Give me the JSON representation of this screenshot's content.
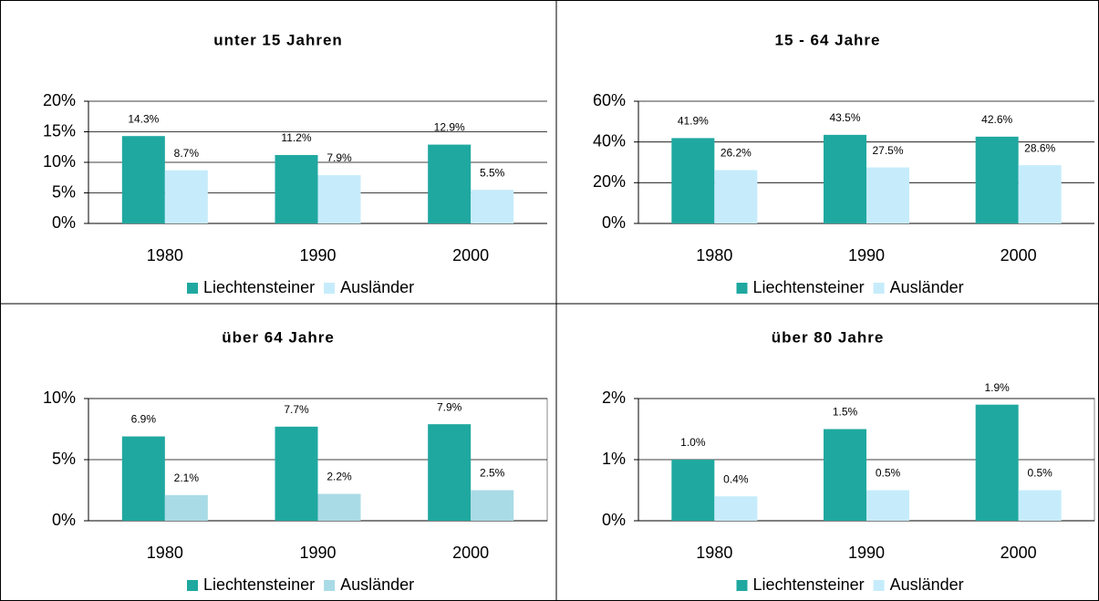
{
  "chart_data": [
    {
      "type": "bar",
      "title": "unter 15 Jahren",
      "categories": [
        "1980",
        "1990",
        "2000"
      ],
      "series": [
        {
          "name": "Liechtensteiner",
          "color": "#1fa8a0",
          "values": [
            14.3,
            11.2,
            12.9
          ],
          "value_labels": [
            "14.3%",
            "11.2%",
            "12.9%"
          ]
        },
        {
          "name": "Ausländer",
          "color": "#c6ecfb",
          "values": [
            8.7,
            7.9,
            5.5
          ],
          "value_labels": [
            "8.7%",
            "7.9%",
            "5.5%"
          ]
        }
      ],
      "ylim": [
        0,
        20
      ],
      "yticks": [
        {
          "value": 0,
          "label": "0%"
        },
        {
          "value": 5,
          "label": "5%"
        },
        {
          "value": 10,
          "label": "10%"
        },
        {
          "value": 15,
          "label": "15%"
        },
        {
          "value": 20,
          "label": "20%"
        }
      ],
      "grid": true
    },
    {
      "type": "bar",
      "title": "15 - 64 Jahre",
      "categories": [
        "1980",
        "1990",
        "2000"
      ],
      "series": [
        {
          "name": "Liechtensteiner",
          "color": "#1fa8a0",
          "values": [
            41.9,
            43.5,
            42.6
          ],
          "value_labels": [
            "41.9%",
            "43.5%",
            "42.6%"
          ]
        },
        {
          "name": "Ausländer",
          "color": "#c6ecfb",
          "values": [
            26.2,
            27.5,
            28.6
          ],
          "value_labels": [
            "26.2%",
            "27.5%",
            "28.6%"
          ]
        }
      ],
      "ylim": [
        0,
        60
      ],
      "yticks": [
        {
          "value": 0,
          "label": "0%"
        },
        {
          "value": 20,
          "label": "20%"
        },
        {
          "value": 40,
          "label": "40%"
        },
        {
          "value": 60,
          "label": "60%"
        }
      ],
      "grid": true
    },
    {
      "type": "bar",
      "title": "über 64 Jahre",
      "categories": [
        "1980",
        "1990",
        "2000"
      ],
      "series": [
        {
          "name": "Liechtensteiner",
          "color": "#1fa8a0",
          "values": [
            6.9,
            7.7,
            7.9
          ],
          "value_labels": [
            "6.9%",
            "7.7%",
            "7.9%"
          ]
        },
        {
          "name": "Ausländer",
          "color": "#a9dbe6",
          "values": [
            2.1,
            2.2,
            2.5
          ],
          "value_labels": [
            "2.1%",
            "2.2%",
            "2.5%"
          ]
        }
      ],
      "ylim": [
        0,
        10
      ],
      "yticks": [
        {
          "value": 0,
          "label": "0%"
        },
        {
          "value": 5,
          "label": "5%"
        },
        {
          "value": 10,
          "label": "10%"
        }
      ],
      "grid": true
    },
    {
      "type": "bar",
      "title": "über 80 Jahre",
      "categories": [
        "1980",
        "1990",
        "2000"
      ],
      "series": [
        {
          "name": "Liechtensteiner",
          "color": "#1fa8a0",
          "values": [
            1.0,
            1.5,
            1.9
          ],
          "value_labels": [
            "1.0%",
            "1.5%",
            "1.9%"
          ]
        },
        {
          "name": "Ausländer",
          "color": "#c6ecfb",
          "values": [
            0.4,
            0.5,
            0.5
          ],
          "value_labels": [
            "0.4%",
            "0.5%",
            "0.5%"
          ]
        }
      ],
      "ylim": [
        0,
        2
      ],
      "yticks": [
        {
          "value": 0,
          "label": "0%"
        },
        {
          "value": 1,
          "label": "1%"
        },
        {
          "value": 2,
          "label": "2%"
        }
      ],
      "grid": true
    }
  ]
}
